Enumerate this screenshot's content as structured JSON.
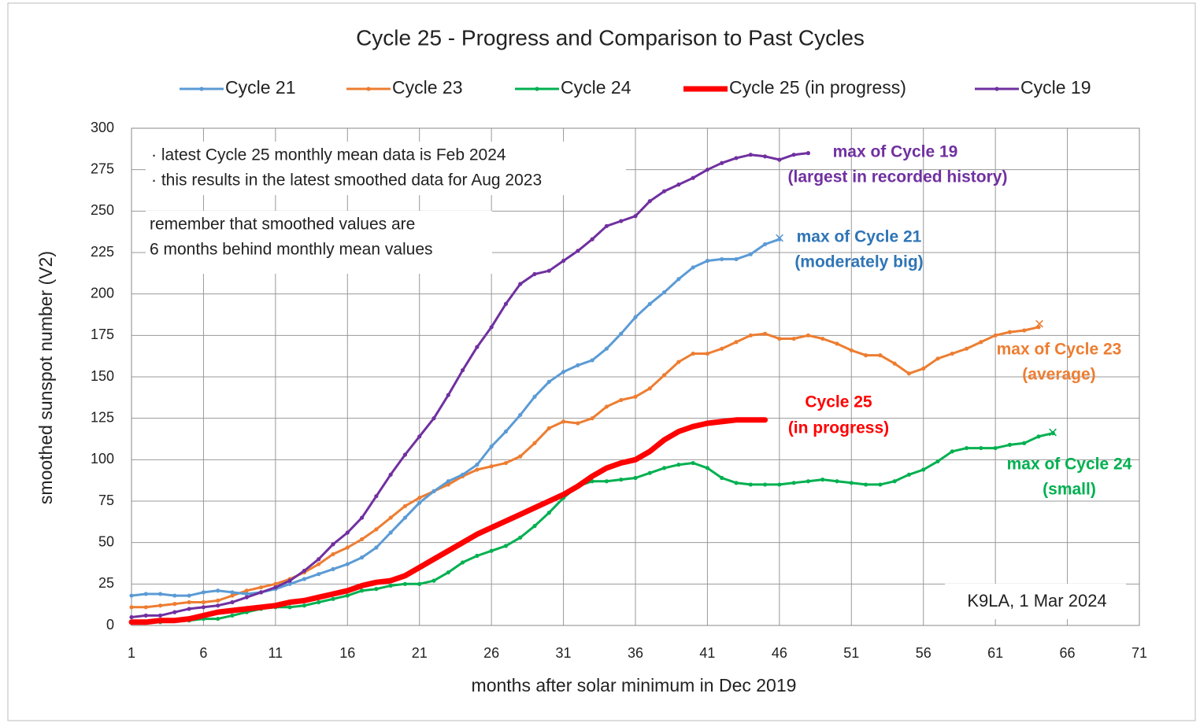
{
  "chart_data": {
    "type": "line",
    "title": "Cycle 25 - Progress and Comparison to Past Cycles",
    "x_label": "months  after solar minimum  in Dec 2019",
    "y_label": "smoothed  sunspot number  (V2)",
    "x": [
      1,
      2,
      3,
      4,
      5,
      6,
      7,
      8,
      9,
      10,
      11,
      12,
      13,
      14,
      15,
      16,
      17,
      18,
      19,
      20,
      21,
      22,
      23,
      24,
      25,
      26,
      27,
      28,
      29,
      30,
      31,
      32,
      33,
      34,
      35,
      36,
      37,
      38,
      39,
      40,
      41,
      42,
      43,
      44,
      45,
      46,
      47,
      48,
      49,
      50,
      51,
      52,
      53,
      54,
      55,
      56,
      57,
      58,
      59,
      60,
      61,
      62,
      63,
      64,
      65
    ],
    "xlim": [
      1,
      71
    ],
    "xticks": [
      1,
      6,
      11,
      16,
      21,
      26,
      31,
      36,
      41,
      46,
      51,
      56,
      61,
      66,
      71
    ],
    "ylim": [
      0,
      300
    ],
    "yticks": [
      0,
      25,
      50,
      75,
      100,
      125,
      150,
      175,
      200,
      225,
      250,
      275,
      300
    ],
    "grid": true,
    "legend": "top",
    "series": [
      {
        "name": "Cycle 21",
        "color": "#5b9bd5",
        "values": [
          18,
          19,
          19,
          18,
          18,
          20,
          21,
          20,
          19,
          20,
          22,
          25,
          28,
          31,
          34,
          37,
          41,
          47,
          56,
          65,
          74,
          81,
          87,
          91,
          97,
          108,
          117,
          127,
          138,
          147,
          153,
          157,
          160,
          167,
          176,
          186,
          194,
          201,
          209,
          216,
          220,
          221,
          221,
          224,
          230,
          233,
          null,
          null,
          null,
          null,
          null,
          null,
          null,
          null,
          null,
          null,
          null,
          null,
          null,
          null,
          null,
          null,
          null,
          null,
          null
        ]
      },
      {
        "name": "Cycle 23",
        "color": "#ed7d31",
        "values": [
          11,
          11,
          12,
          13,
          14,
          14,
          15,
          18,
          21,
          23,
          25,
          28,
          32,
          37,
          43,
          47,
          52,
          58,
          65,
          72,
          77,
          81,
          85,
          90,
          94,
          96,
          98,
          102,
          110,
          119,
          123,
          122,
          125,
          132,
          136,
          138,
          143,
          151,
          159,
          164,
          164,
          167,
          171,
          175,
          176,
          173,
          173,
          175,
          173,
          170,
          166,
          163,
          163,
          158,
          152,
          155,
          161,
          164,
          167,
          171,
          175,
          177,
          178,
          180,
          null
        ]
      },
      {
        "name": "Cycle 24",
        "color": "#00b050",
        "values": [
          2,
          2,
          2,
          3,
          3,
          4,
          4,
          6,
          8,
          10,
          11,
          11,
          12,
          14,
          16,
          18,
          21,
          22,
          24,
          25,
          25,
          27,
          32,
          38,
          42,
          45,
          48,
          53,
          60,
          68,
          77,
          84,
          87,
          87,
          88,
          89,
          92,
          95,
          97,
          98,
          95,
          89,
          86,
          85,
          85,
          85,
          86,
          87,
          88,
          87,
          86,
          85,
          85,
          87,
          91,
          94,
          99,
          105,
          107,
          107,
          107,
          109,
          110,
          114,
          116
        ]
      },
      {
        "name": "Cycle 25 (in progress)",
        "color": "#ff0000",
        "values": [
          2,
          2,
          3,
          3,
          4,
          6,
          8,
          9,
          10,
          11,
          12,
          14,
          15,
          17,
          19,
          21,
          24,
          26,
          27,
          30,
          35,
          40,
          45,
          50,
          55,
          59,
          63,
          67,
          71,
          75,
          79,
          84,
          90,
          95,
          98,
          100,
          105,
          112,
          117,
          120,
          122,
          123,
          124,
          124,
          124,
          null,
          null,
          null,
          null,
          null,
          null,
          null,
          null,
          null,
          null,
          null,
          null,
          null,
          null,
          null,
          null,
          null,
          null,
          null,
          null
        ]
      },
      {
        "name": "Cycle 19",
        "color": "#7030a0",
        "values": [
          5,
          6,
          6,
          8,
          10,
          11,
          12,
          14,
          17,
          20,
          23,
          27,
          33,
          40,
          49,
          56,
          65,
          78,
          91,
          103,
          114,
          125,
          139,
          154,
          168,
          180,
          194,
          206,
          212,
          214,
          220,
          226,
          233,
          241,
          244,
          247,
          256,
          262,
          266,
          270,
          275,
          279,
          282,
          284,
          283,
          281,
          284,
          285,
          null,
          null,
          null,
          null,
          null,
          null,
          null,
          null,
          null,
          null,
          null,
          null,
          null,
          null,
          null,
          null,
          null
        ]
      }
    ],
    "annotations": [
      {
        "text": "max of Cycle 19",
        "color": "#7030a0"
      },
      {
        "text": "(largest  in recorded history)",
        "color": "#7030a0"
      },
      {
        "text": "max of Cycle 21",
        "color": "#2e75b6"
      },
      {
        "text": "(moderately big)",
        "color": "#2e75b6"
      },
      {
        "text": "max of Cycle 23",
        "color": "#ed7d31"
      },
      {
        "text": "(average)",
        "color": "#ed7d31"
      },
      {
        "text": "Cycle 25",
        "color": "#ff0000"
      },
      {
        "text": "(in progress)",
        "color": "#ff0000"
      },
      {
        "text": "max of Cycle 24",
        "color": "#00b050"
      },
      {
        "text": "(small)",
        "color": "#00b050"
      }
    ],
    "notes": [
      "· latest Cycle 25 monthly mean data is Feb 2024",
      "· this results in the  latest smoothed data for Aug 2023",
      "remember  that smoothed values are",
      "6 months behind monthly mean values"
    ],
    "credit": "K9LA, 1 Mar 2024"
  }
}
